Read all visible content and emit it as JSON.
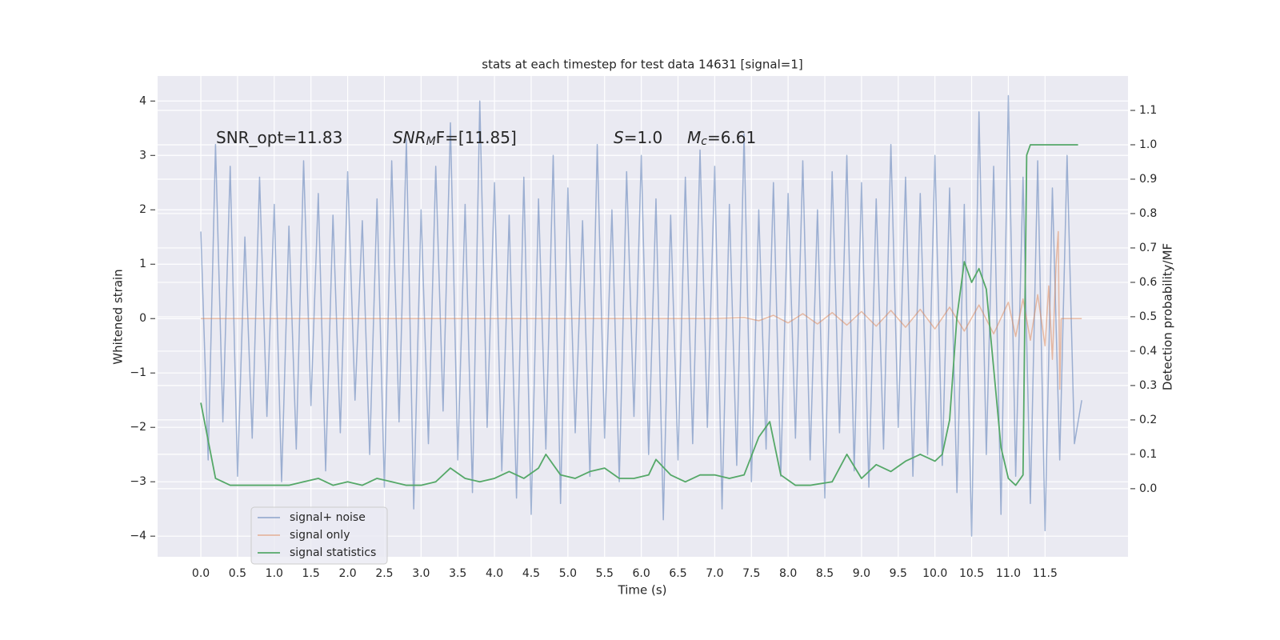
{
  "chart_data": {
    "type": "line",
    "title": "stats at each timestep for test data 14631 [signal=1]",
    "x_label": "Time (s)",
    "y_label": "Whitened strain",
    "y2_label": "Detection probability/MF",
    "xlim": [
      -0.589,
      12.63
    ],
    "ylim": [
      -4.38,
      4.46
    ],
    "y2lim": [
      -0.198,
      1.2
    ],
    "xticks": [
      {
        "value": 0,
        "label": "0.0"
      },
      0.5,
      {
        "value": 1,
        "label": "1.0"
      },
      1.5,
      {
        "value": 2,
        "label": "2.0"
      },
      2.5,
      {
        "value": 3,
        "label": "3.0"
      },
      3.5,
      {
        "value": 4,
        "label": "4.0"
      },
      4.5,
      {
        "value": 5,
        "label": "5.0"
      },
      5.5,
      {
        "value": 6,
        "label": "6.0"
      },
      6.5,
      {
        "value": 7,
        "label": "7.0"
      },
      7.5,
      {
        "value": 8,
        "label": "8.0"
      },
      8.5,
      {
        "value": 9,
        "label": "9.0"
      },
      9.5,
      {
        "value": 10,
        "label": "10.0"
      },
      10.5,
      {
        "value": 11,
        "label": "11.0"
      },
      11.5
    ],
    "yticks": [
      {
        "value": -4,
        "label": "−4"
      },
      {
        "value": -3,
        "label": "−3"
      },
      {
        "value": -2,
        "label": "−2"
      },
      {
        "value": -1,
        "label": "−1"
      },
      0,
      1,
      2,
      3,
      4
    ],
    "y2ticks": [
      {
        "value": 0,
        "label": "0.0"
      },
      0.1,
      0.2,
      0.3,
      0.4,
      0.5,
      0.6,
      0.7,
      0.8,
      0.9,
      {
        "value": 1,
        "label": "1.0"
      },
      1.1
    ],
    "grid": true,
    "annotations": [
      {
        "text": "SNR_opt=11.83"
      },
      {
        "main": "SNR",
        "sub": "M",
        "tail": "F=[11.85]"
      },
      {
        "main": "S",
        "tail": "=1.0"
      },
      {
        "main": "M",
        "sub": "c",
        "tail": "=6.61"
      }
    ],
    "series": [
      {
        "name": "signal+ noise",
        "color": "#4c72b0",
        "alpha": 0.5,
        "x": [
          0,
          0.1,
          0.2,
          0.3,
          0.4,
          0.5,
          0.6,
          0.7,
          0.8,
          0.9,
          1,
          1.1,
          1.2,
          1.3,
          1.4,
          1.5,
          1.6,
          1.7,
          1.8,
          1.9,
          2,
          2.1,
          2.2,
          2.3,
          2.4,
          2.5,
          2.6,
          2.7,
          2.8,
          2.9,
          3,
          3.1,
          3.2,
          3.3,
          3.4,
          3.5,
          3.6,
          3.7,
          3.8,
          3.9,
          4,
          4.1,
          4.2,
          4.3,
          4.4,
          4.5,
          4.6,
          4.7,
          4.8,
          4.9,
          5,
          5.1,
          5.2,
          5.3,
          5.4,
          5.5,
          5.6,
          5.7,
          5.8,
          5.9,
          6,
          6.1,
          6.2,
          6.3,
          6.4,
          6.5,
          6.6,
          6.7,
          6.8,
          6.9,
          7,
          7.1,
          7.2,
          7.3,
          7.4,
          7.5,
          7.6,
          7.7,
          7.8,
          7.9,
          8,
          8.1,
          8.2,
          8.3,
          8.4,
          8.5,
          8.6,
          8.7,
          8.8,
          8.9,
          9,
          9.1,
          9.2,
          9.3,
          9.4,
          9.5,
          9.6,
          9.7,
          9.8,
          9.9,
          10,
          10.1,
          10.2,
          10.3,
          10.4,
          10.5,
          10.6,
          10.7,
          10.8,
          10.9,
          11,
          11.1,
          11.2,
          11.3,
          11.4,
          11.5,
          11.6,
          11.7,
          11.8,
          11.9,
          12
        ],
        "values": [
          1.6,
          -2.6,
          3.2,
          -1.9,
          2.8,
          -2.9,
          1.5,
          -2.2,
          2.6,
          -1.8,
          2.1,
          -3.0,
          1.7,
          -2.4,
          2.9,
          -1.6,
          2.3,
          -2.8,
          1.9,
          -2.1,
          2.7,
          -1.5,
          1.8,
          -2.5,
          2.2,
          -3.1,
          2.9,
          -1.9,
          3.3,
          -3.5,
          2.0,
          -2.3,
          2.8,
          -1.7,
          3.6,
          -2.6,
          2.1,
          -3.2,
          4.0,
          -2.0,
          2.5,
          -2.8,
          1.9,
          -3.3,
          2.6,
          -3.6,
          2.2,
          -2.4,
          3.0,
          -3.4,
          2.4,
          -2.1,
          1.8,
          -2.9,
          3.2,
          -2.2,
          2.0,
          -3.0,
          2.7,
          -1.8,
          3.0,
          -2.5,
          2.2,
          -3.7,
          1.9,
          -2.6,
          2.6,
          -2.3,
          3.1,
          -2.0,
          2.8,
          -3.5,
          2.1,
          -2.7,
          3.4,
          -3.0,
          2.0,
          -2.4,
          2.5,
          -2.9,
          2.3,
          -2.2,
          2.9,
          -2.6,
          2.0,
          -3.3,
          2.7,
          -2.1,
          3.0,
          -2.8,
          2.5,
          -3.1,
          2.2,
          -2.4,
          3.2,
          -2.0,
          2.6,
          -2.9,
          2.3,
          -2.5,
          3.0,
          -2.7,
          2.4,
          -3.2,
          2.1,
          -4.0,
          3.8,
          -2.5,
          2.8,
          -3.6,
          4.1,
          -2.9,
          2.6,
          -3.4,
          2.9,
          -3.9,
          2.4,
          -2.6,
          3.0,
          -2.3,
          -1.5
        ]
      },
      {
        "name": "signal only",
        "color": "#dd8452",
        "alpha": 0.5,
        "x": [
          0,
          7.0,
          7.4,
          7.6,
          7.8,
          8.0,
          8.2,
          8.4,
          8.6,
          8.8,
          9.0,
          9.2,
          9.4,
          9.6,
          9.8,
          10.0,
          10.2,
          10.4,
          10.6,
          10.8,
          11.0,
          11.1,
          11.2,
          11.3,
          11.4,
          11.5,
          11.55,
          11.6,
          11.65,
          11.68,
          11.7,
          11.72,
          12.0
        ],
        "values": [
          0,
          0,
          0.02,
          -0.04,
          0.06,
          -0.08,
          0.09,
          -0.1,
          0.11,
          -0.12,
          0.13,
          -0.14,
          0.15,
          -0.16,
          0.17,
          -0.19,
          0.21,
          -0.23,
          0.25,
          -0.28,
          0.3,
          -0.33,
          0.36,
          -0.4,
          0.44,
          -0.5,
          0.6,
          -0.75,
          1.0,
          1.6,
          -1.3,
          0,
          0
        ]
      },
      {
        "name": "signal statistics",
        "color": "#55a868",
        "axis": "y2",
        "x": [
          0,
          0.1,
          0.2,
          0.4,
          0.6,
          0.8,
          1.0,
          1.2,
          1.4,
          1.6,
          1.8,
          2.0,
          2.2,
          2.4,
          2.6,
          2.8,
          3.0,
          3.2,
          3.4,
          3.6,
          3.8,
          4.0,
          4.2,
          4.4,
          4.6,
          4.7,
          4.9,
          5.1,
          5.3,
          5.5,
          5.7,
          5.9,
          6.1,
          6.2,
          6.4,
          6.6,
          6.8,
          7.0,
          7.2,
          7.4,
          7.6,
          7.75,
          7.9,
          8.1,
          8.3,
          8.6,
          8.8,
          9.0,
          9.2,
          9.4,
          9.6,
          9.8,
          10.0,
          10.1,
          10.2,
          10.3,
          10.4,
          10.5,
          10.6,
          10.7,
          10.8,
          10.9,
          11.0,
          11.1,
          11.2,
          11.25,
          11.3,
          11.4,
          11.95
        ],
        "values": [
          0.25,
          0.14,
          0.03,
          0.01,
          0.01,
          0.01,
          0.01,
          0.01,
          0.02,
          0.03,
          0.01,
          0.02,
          0.01,
          0.03,
          0.02,
          0.01,
          0.01,
          0.02,
          0.06,
          0.03,
          0.02,
          0.03,
          0.05,
          0.03,
          0.06,
          0.1,
          0.04,
          0.03,
          0.05,
          0.06,
          0.03,
          0.03,
          0.04,
          0.085,
          0.04,
          0.02,
          0.04,
          0.04,
          0.03,
          0.04,
          0.15,
          0.195,
          0.04,
          0.01,
          0.01,
          0.02,
          0.1,
          0.03,
          0.07,
          0.05,
          0.08,
          0.1,
          0.08,
          0.1,
          0.2,
          0.5,
          0.66,
          0.6,
          0.64,
          0.58,
          0.35,
          0.12,
          0.03,
          0.01,
          0.04,
          0.97,
          1.0,
          1.0,
          1.0
        ]
      }
    ]
  }
}
